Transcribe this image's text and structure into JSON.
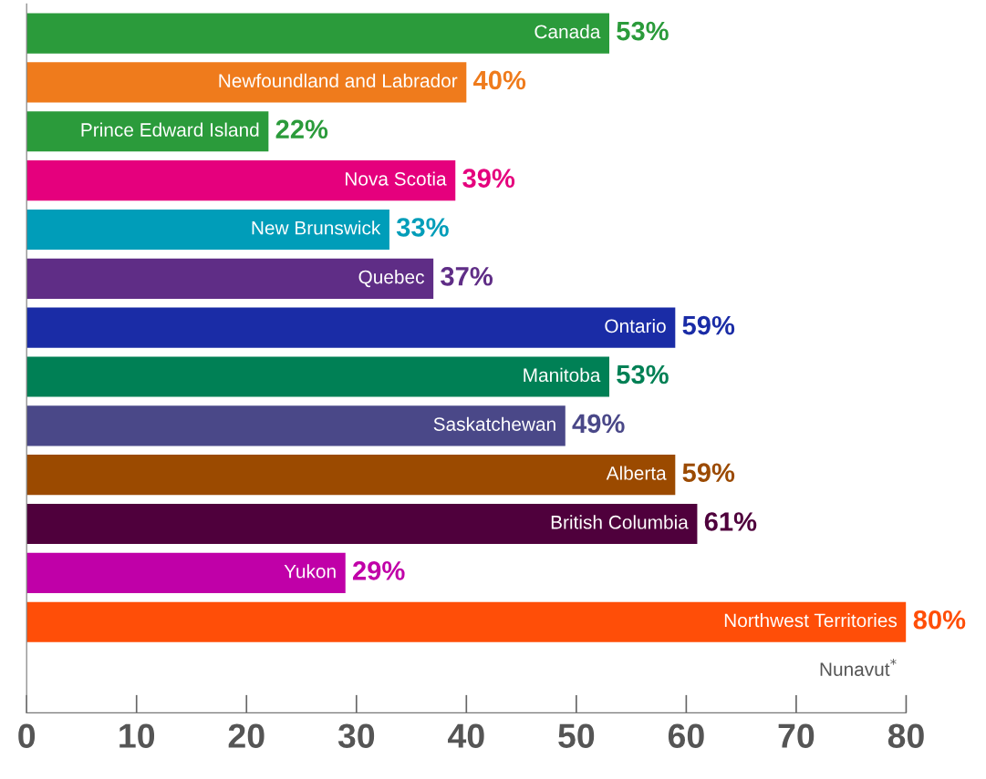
{
  "chart_data": {
    "type": "bar",
    "orientation": "horizontal",
    "categories": [
      "Canada",
      "Newfoundland and Labrador",
      "Prince Edward Island",
      "Nova Scotia",
      "New Brunswick",
      "Quebec",
      "Ontario",
      "Manitoba",
      "Saskatchewan",
      "Alberta",
      "British Columbia",
      "Yukon",
      "Northwest Territories",
      "Nunavut$^{*}$"
    ],
    "values": [
      53,
      40,
      22,
      39,
      33,
      37,
      59,
      53,
      49,
      59,
      61,
      29,
      80,
      null
    ],
    "value_labels": [
      "53%",
      "40%",
      "22%",
      "39%",
      "33%",
      "37%",
      "59%",
      "53%",
      "49%",
      "59%",
      "61%",
      "29%",
      "80%",
      null
    ],
    "colors": [
      "#2b9b3b",
      "#ef7b1c",
      "#2b9b3b",
      "#e5007d",
      "#009db9",
      "#5f2d86",
      "#1a2ca6",
      "#008055",
      "#4a4888",
      "#9b4a00",
      "#4f003c",
      "#c000a8",
      "#ff4e08",
      "#555555"
    ],
    "xlim": [
      0,
      80
    ],
    "xticks": [
      0,
      10,
      20,
      30,
      40,
      50,
      60,
      70,
      80
    ],
    "grid": false,
    "legend": false
  }
}
